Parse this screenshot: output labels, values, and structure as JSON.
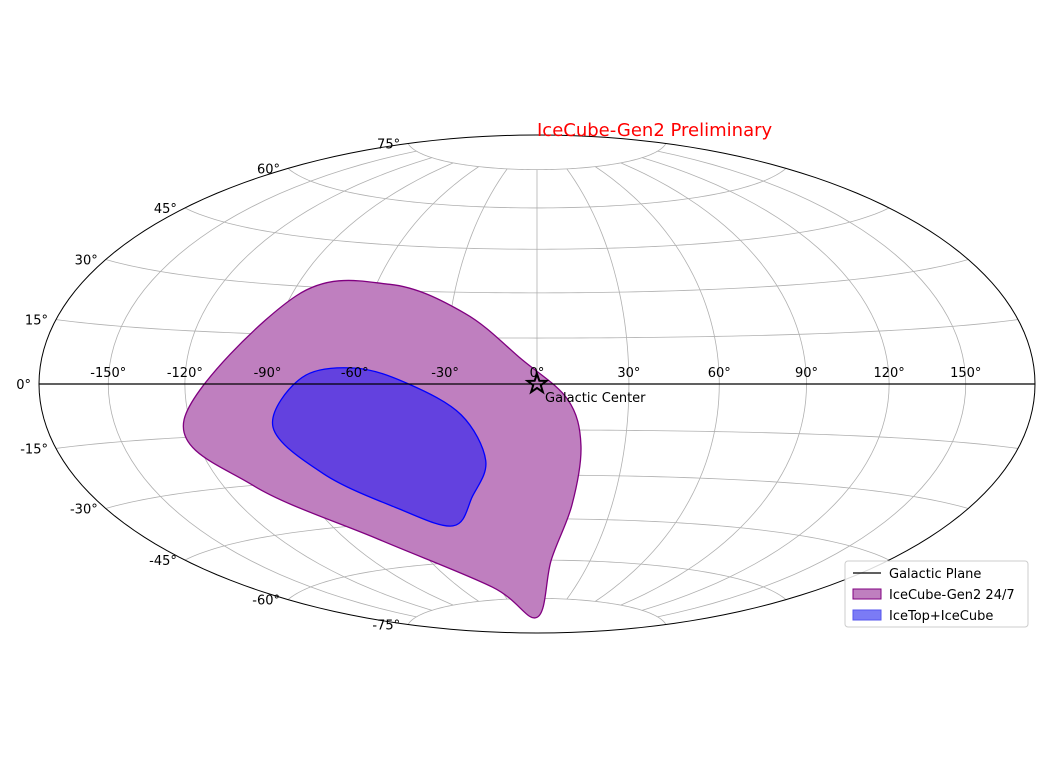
{
  "chart_data": {
    "type": "area",
    "projection": "hammer-aitoff",
    "annotation": "IceCube-Gen2 Preliminary",
    "annotation_color": "#ff0000",
    "longitude_ticks": [
      -150,
      -120,
      -90,
      -60,
      -30,
      0,
      30,
      60,
      90,
      120,
      150
    ],
    "longitude_tick_labels": [
      "-150°",
      "-120°",
      "-90°",
      "-60°",
      "-30°",
      "0°",
      "30°",
      "60°",
      "90°",
      "120°",
      "150°"
    ],
    "latitude_ticks": [
      75,
      60,
      45,
      30,
      15,
      0,
      -15,
      -30,
      -45,
      -60,
      -75
    ],
    "latitude_tick_labels": [
      "75°",
      "60°",
      "45°",
      "30°",
      "15°",
      "0°",
      "-15°",
      "-30°",
      "-45°",
      "-60°",
      "-75°"
    ],
    "grid": true,
    "galactic_plane": {
      "name": "Galactic Plane",
      "color": "#000000",
      "lat": 0
    },
    "galactic_center": {
      "label": "Galactic Center",
      "lon": 0,
      "lat": 0,
      "marker": "star"
    },
    "series": [
      {
        "name": "IceCube-Gen2 24/7",
        "fill": "#bf7fbf",
        "edge": "#800080",
        "outline": [
          [
            -122,
            -10
          ],
          [
            -88,
            27
          ],
          [
            -55,
            32
          ],
          [
            -25,
            23
          ],
          [
            -5,
            8
          ],
          [
            10,
            -5
          ],
          [
            15,
            -20
          ],
          [
            14,
            -40
          ],
          [
            8,
            -60
          ],
          [
            0,
            -83
          ],
          [
            -35,
            -70
          ],
          [
            -75,
            -50
          ],
          [
            -108,
            -30
          ],
          [
            -122,
            -10
          ]
        ]
      },
      {
        "name": "IceTop+IceCube",
        "fill": "#5e3ee0",
        "edge": "#0000ff",
        "outline": [
          [
            -90,
            -13
          ],
          [
            -78,
            2
          ],
          [
            -60,
            5
          ],
          [
            -42,
            0
          ],
          [
            -25,
            -10
          ],
          [
            -18,
            -25
          ],
          [
            -25,
            -37
          ],
          [
            -37,
            -47
          ],
          [
            -57,
            -40
          ],
          [
            -78,
            -28
          ],
          [
            -90,
            -13
          ]
        ]
      }
    ],
    "legend": {
      "placement": "lower-right",
      "entries": [
        "Galactic Plane",
        "IceCube-Gen2 24/7",
        "IceTop+IceCube"
      ]
    }
  }
}
